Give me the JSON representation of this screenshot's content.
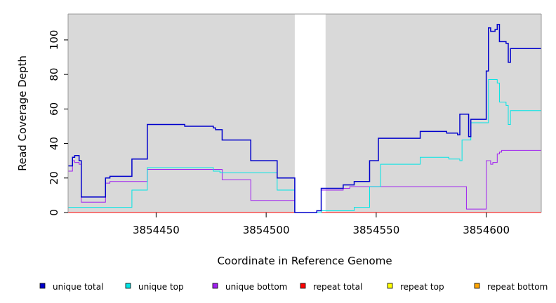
{
  "chart_data": {
    "type": "line",
    "title": "",
    "xlabel": "Coordinate in Reference Genome",
    "ylabel": "Read Coverage Depth",
    "xlim": [
      3854410,
      3854625
    ],
    "ylim": [
      0,
      115
    ],
    "x_ticks": [
      {
        "value": 3854450,
        "label": "3854450"
      },
      {
        "value": 3854500,
        "label": "3854500"
      },
      {
        "value": 3854550,
        "label": "3854550"
      },
      {
        "value": 3854600,
        "label": "3854600"
      }
    ],
    "y_ticks": [
      {
        "value": 0,
        "label": "0"
      },
      {
        "value": 20,
        "label": "20"
      },
      {
        "value": 40,
        "label": "40"
      },
      {
        "value": 60,
        "label": "60"
      },
      {
        "value": 80,
        "label": "80"
      },
      {
        "value": 100,
        "label": "100"
      }
    ],
    "grid": false,
    "background": "#d9d9d9",
    "gap_region": [
      3854513,
      3854527
    ],
    "legend_position": "bottom",
    "series": [
      {
        "name": "unique total",
        "color": "#0000cc",
        "step": [
          [
            3854410,
            27
          ],
          [
            3854412,
            32
          ],
          [
            3854413,
            33
          ],
          [
            3854415,
            30
          ],
          [
            3854416,
            9
          ],
          [
            3854427,
            20
          ],
          [
            3854429,
            21
          ],
          [
            3854439,
            31
          ],
          [
            3854446,
            51
          ],
          [
            3854463,
            50
          ],
          [
            3854476,
            49
          ],
          [
            3854477,
            48
          ],
          [
            3854480,
            42
          ],
          [
            3854493,
            30
          ],
          [
            3854505,
            20
          ],
          [
            3854513,
            0
          ],
          [
            3854523,
            1
          ],
          [
            3854525,
            14
          ],
          [
            3854535,
            16
          ],
          [
            3854540,
            18
          ],
          [
            3854547,
            30
          ],
          [
            3854551,
            43
          ],
          [
            3854570,
            47
          ],
          [
            3854582,
            46
          ],
          [
            3854587,
            45
          ],
          [
            3854588,
            57
          ],
          [
            3854592,
            44
          ],
          [
            3854593,
            54
          ],
          [
            3854600,
            82
          ],
          [
            3854601,
            107
          ],
          [
            3854602,
            105
          ],
          [
            3854604,
            106
          ],
          [
            3854605,
            109
          ],
          [
            3854606,
            99
          ],
          [
            3854609,
            98
          ],
          [
            3854610,
            87
          ],
          [
            3854611,
            95
          ],
          [
            3854625,
            95
          ]
        ]
      },
      {
        "name": "unique top",
        "color": "#00e5e5",
        "step": [
          [
            3854410,
            3
          ],
          [
            3854439,
            13
          ],
          [
            3854446,
            26
          ],
          [
            3854476,
            24
          ],
          [
            3854479,
            23
          ],
          [
            3854505,
            13
          ],
          [
            3854513,
            0
          ],
          [
            3854525,
            1
          ],
          [
            3854540,
            3
          ],
          [
            3854547,
            15
          ],
          [
            3854552,
            28
          ],
          [
            3854570,
            32
          ],
          [
            3854583,
            31
          ],
          [
            3854588,
            30
          ],
          [
            3854589,
            42
          ],
          [
            3854593,
            52
          ],
          [
            3854601,
            77
          ],
          [
            3854605,
            75
          ],
          [
            3854606,
            64
          ],
          [
            3854609,
            62
          ],
          [
            3854610,
            51
          ],
          [
            3854611,
            59
          ],
          [
            3854625,
            59
          ]
        ]
      },
      {
        "name": "unique bottom",
        "color": "#a020f0",
        "step": [
          [
            3854410,
            24
          ],
          [
            3854412,
            30
          ],
          [
            3854413,
            29
          ],
          [
            3854415,
            28
          ],
          [
            3854416,
            6
          ],
          [
            3854427,
            17
          ],
          [
            3854429,
            18
          ],
          [
            3854446,
            25
          ],
          [
            3854480,
            19
          ],
          [
            3854493,
            7
          ],
          [
            3854513,
            0
          ],
          [
            3854525,
            13
          ],
          [
            3854535,
            14
          ],
          [
            3854538,
            15
          ],
          [
            3854591,
            2
          ],
          [
            3854600,
            30
          ],
          [
            3854602,
            28
          ],
          [
            3854603,
            29
          ],
          [
            3854605,
            34
          ],
          [
            3854606,
            35
          ],
          [
            3854607,
            36
          ],
          [
            3854625,
            36
          ]
        ]
      },
      {
        "name": "repeat total",
        "color": "#ff0000",
        "step": [
          [
            3854410,
            0
          ],
          [
            3854625,
            0
          ]
        ]
      },
      {
        "name": "repeat top",
        "color": "#ffff00",
        "step": [
          [
            3854410,
            0
          ],
          [
            3854625,
            0
          ]
        ]
      },
      {
        "name": "repeat bottom",
        "color": "#ffa500",
        "step": [
          [
            3854410,
            0
          ],
          [
            3854625,
            0
          ]
        ]
      }
    ]
  }
}
